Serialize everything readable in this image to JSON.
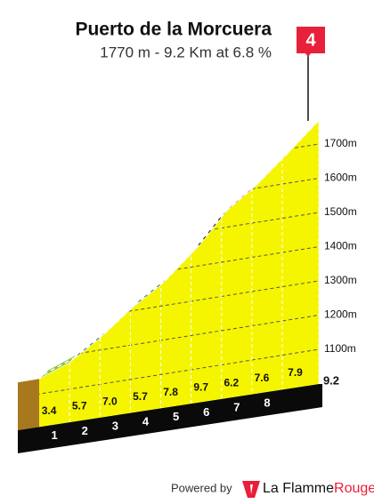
{
  "chart_data": {
    "type": "profile",
    "title": "Puerto de la Morcuera",
    "subtitle": "1770 m - 9.2 Km at 6.8 %",
    "category": "4",
    "x": [
      0,
      1,
      2,
      3,
      4,
      5,
      6,
      7,
      8,
      9.2
    ],
    "values": [
      1144,
      1178,
      1235,
      1305,
      1362,
      1440,
      1537,
      1599,
      1675,
      1770
    ],
    "color": "#f5f500",
    "gradients": {
      "values": [
        3.4,
        5.7,
        7.0,
        5.7,
        7.8,
        9.7,
        6.2,
        7.6,
        7.9
      ],
      "value_labels": [
        "3.4",
        "5.7",
        "7.0",
        "5.7",
        "7.8",
        "9.7",
        "6.2",
        "7.6",
        "7.9"
      ],
      "colors": [
        "#8cc63f",
        "#1f5f8b",
        "#e8203a",
        "#1f5f8b",
        "#e8203a",
        "#111111",
        "#e8203a",
        "#e8203a",
        "#e8203a"
      ]
    },
    "xlim": [
      0,
      9.2
    ],
    "xticks": [
      1,
      2,
      3,
      4,
      5,
      6,
      7,
      8,
      9.2
    ],
    "ylim": [
      1050,
      1800
    ],
    "yticks": [
      {
        "value": 1100,
        "label": "1100m"
      },
      {
        "value": 1200,
        "label": "1200m"
      },
      {
        "value": 1300,
        "label": "1300m"
      },
      {
        "value": 1400,
        "label": "1400m"
      },
      {
        "value": 1500,
        "label": "1500m"
      },
      {
        "value": 1600,
        "label": "1600m"
      },
      {
        "value": 1700,
        "label": "1700m"
      }
    ],
    "grid": true
  },
  "footer": {
    "powered_by": "Powered by",
    "brand": "La Flamme",
    "brand_accent": "Rouge"
  }
}
